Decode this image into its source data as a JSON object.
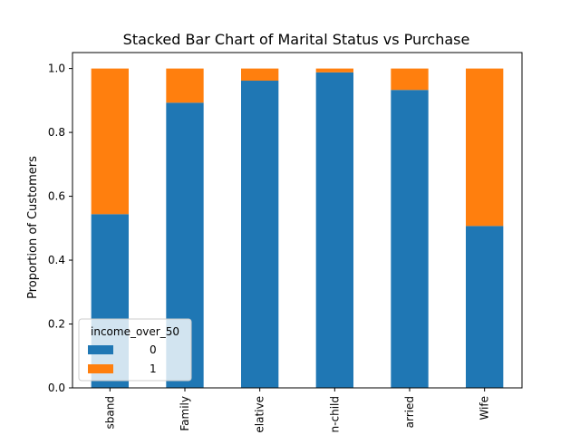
{
  "chart_data": {
    "type": "bar",
    "stacked": true,
    "title": "Stacked Bar Chart of Marital Status vs Purchase",
    "xlabel": "",
    "ylabel": "Proportion of Customers",
    "categories": [
      "sband",
      "Family",
      "elative",
      "n-child",
      "arried",
      "Wife"
    ],
    "series": [
      {
        "name": "0",
        "color": "#1f77b4",
        "values": [
          0.544,
          0.893,
          0.962,
          0.988,
          0.933,
          0.507
        ]
      },
      {
        "name": "1",
        "color": "#ff7f0e",
        "values": [
          0.456,
          0.107,
          0.038,
          0.012,
          0.067,
          0.493
        ]
      }
    ],
    "yticks": [
      "0.0",
      "0.2",
      "0.4",
      "0.6",
      "0.8",
      "1.0"
    ],
    "ylim": [
      0,
      1.05
    ],
    "grid": false,
    "legend": {
      "title": "income_over_50",
      "placement": "lower-left"
    }
  }
}
